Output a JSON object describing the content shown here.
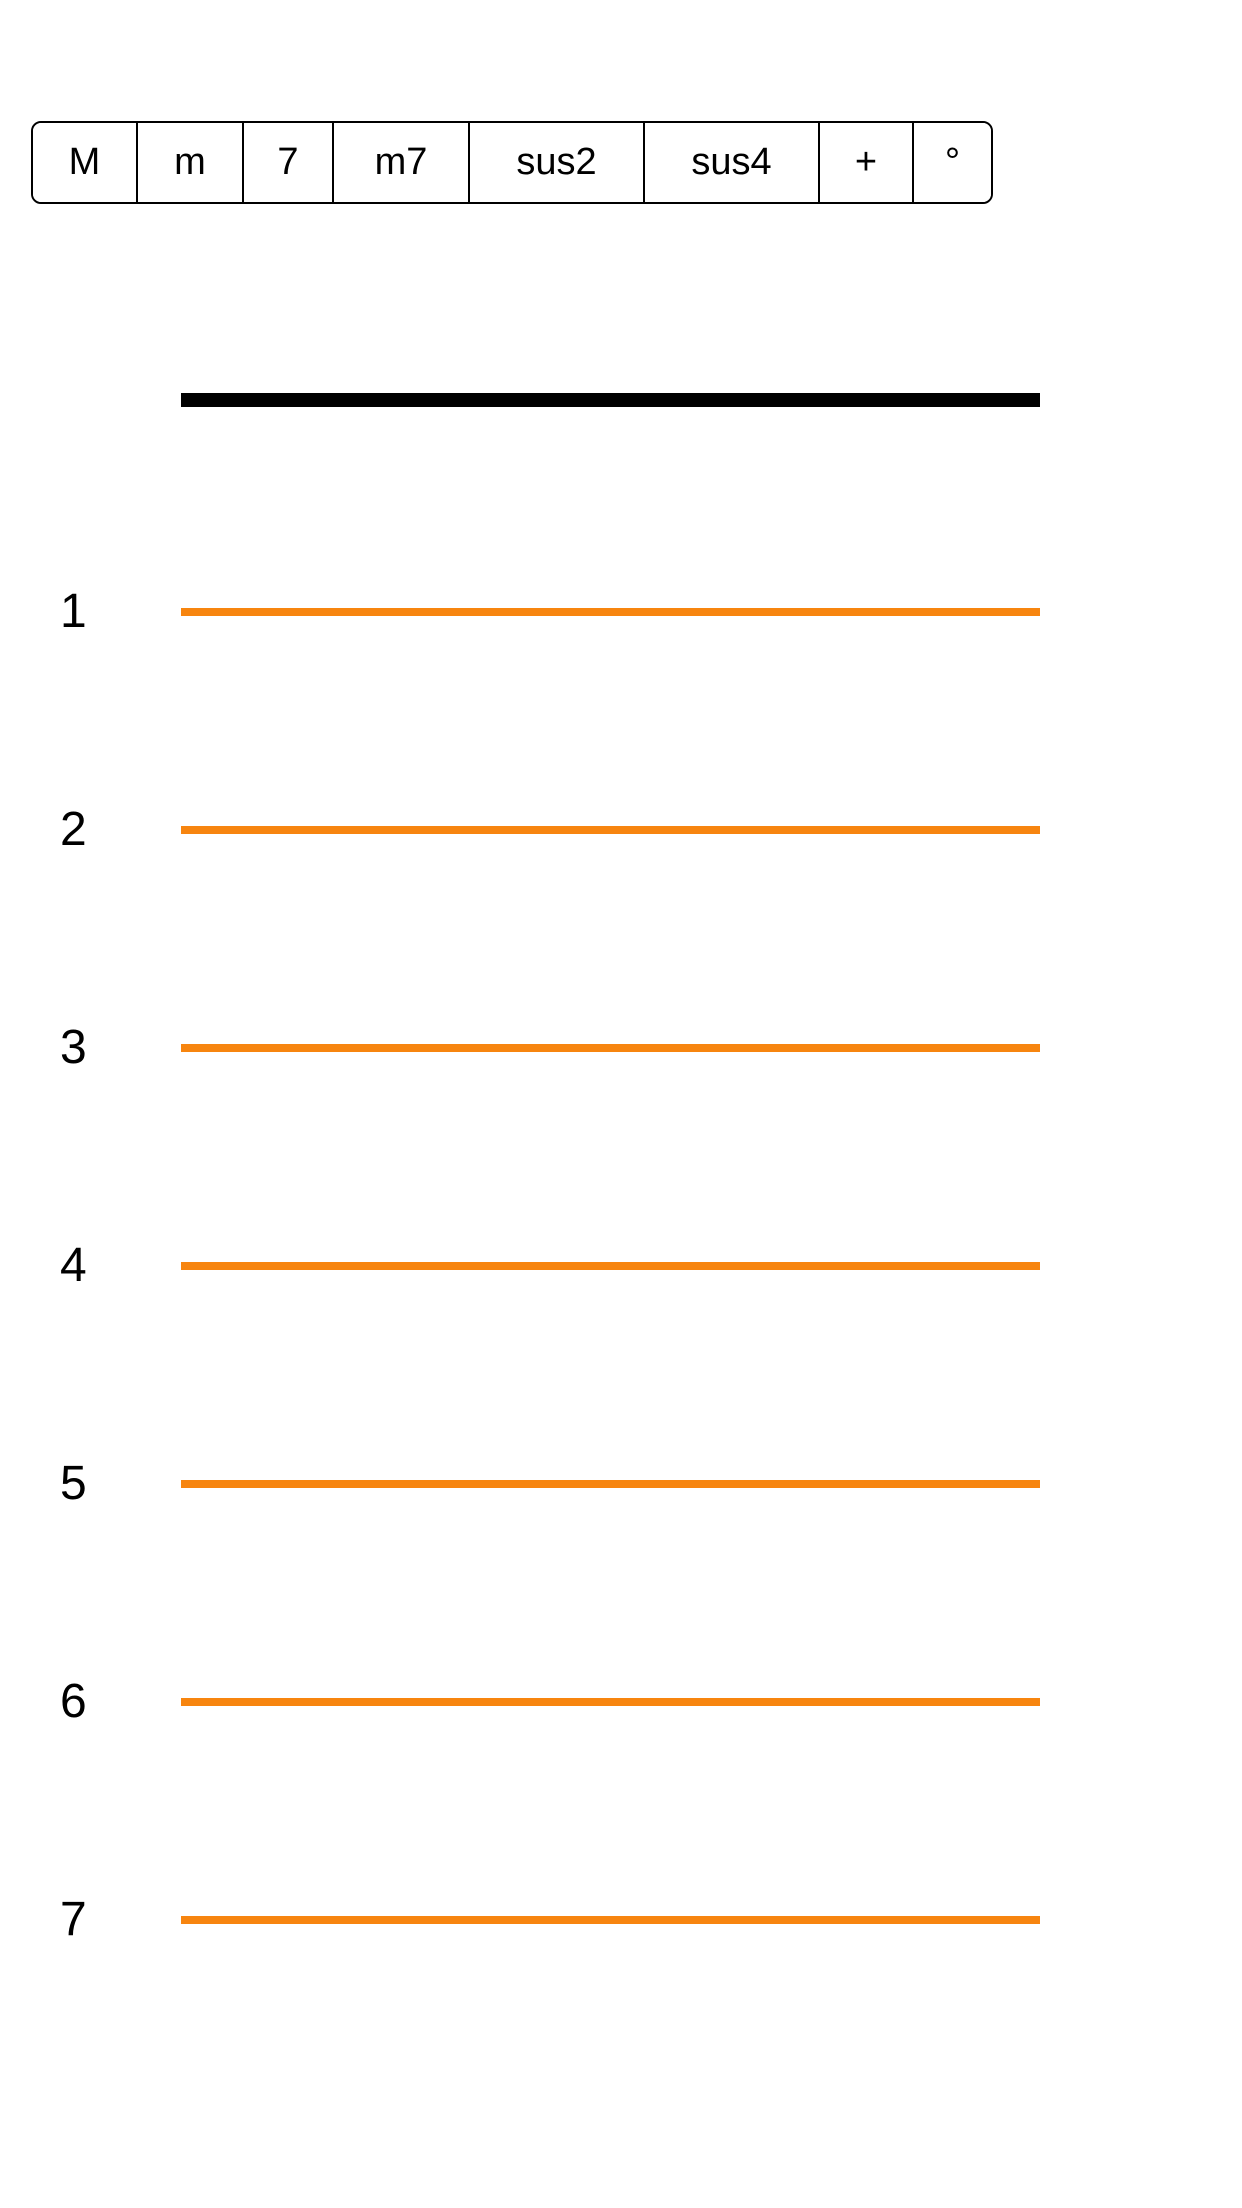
{
  "chord_qualities": [
    {
      "label": "M"
    },
    {
      "label": "m"
    },
    {
      "label": "7"
    },
    {
      "label": "m7"
    },
    {
      "label": "sus2"
    },
    {
      "label": "sus4"
    },
    {
      "label": "+"
    },
    {
      "label": "°"
    }
  ],
  "frets": [
    {
      "number": "1"
    },
    {
      "number": "2"
    },
    {
      "number": "3"
    },
    {
      "number": "4"
    },
    {
      "number": "5"
    },
    {
      "number": "6"
    },
    {
      "number": "7"
    }
  ],
  "colors": {
    "fret_line": "#f7850f",
    "nut": "#000000",
    "background": "#ffffff"
  }
}
